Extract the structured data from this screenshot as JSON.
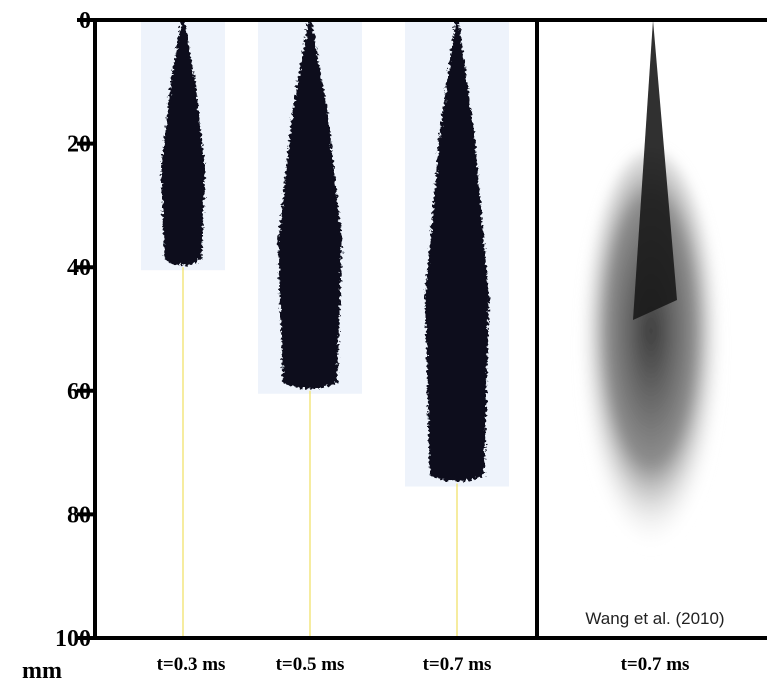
{
  "chart_data": {
    "type": "spray",
    "categories": [
      "t=0.3 ms",
      "t=0.5 ms",
      "t=0.7 ms",
      "t=0.7 ms"
    ],
    "values": [
      40,
      60,
      75,
      78
    ],
    "y_label": "mm",
    "ylim": [
      0,
      100
    ],
    "yticks": [
      0,
      20,
      40,
      60,
      80,
      100
    ],
    "annotation": "Wang et al. (2010)",
    "color": "#0b0f1e"
  }
}
